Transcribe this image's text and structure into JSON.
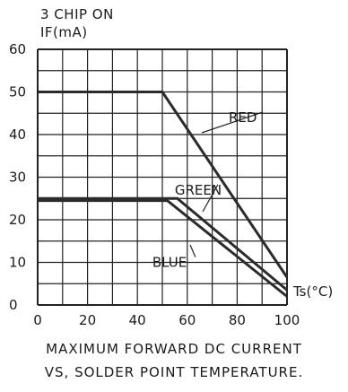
{
  "chart_data": {
    "type": "line",
    "title": "3 CHIP ON",
    "ylabel": "IF(mA)",
    "xlabel": "Ts(°C)",
    "xlim": [
      0,
      100
    ],
    "ylim": [
      0,
      60
    ],
    "x_ticks": [
      "0",
      "20",
      "40",
      "60",
      "80",
      "100"
    ],
    "y_ticks": [
      "0",
      "10",
      "20",
      "30",
      "40",
      "50",
      "60"
    ],
    "grid": true,
    "series": [
      {
        "name": "RED",
        "x": [
          0,
          50,
          100
        ],
        "y": [
          50,
          50,
          6.5
        ],
        "label_at": [
          73,
          44
        ]
      },
      {
        "name": "GREEN",
        "x": [
          0,
          56,
          100
        ],
        "y": [
          25,
          25,
          3.5
        ],
        "label_at": [
          55,
          27
        ]
      },
      {
        "name": "BLUE",
        "x": [
          0,
          52,
          100
        ],
        "y": [
          24.5,
          24.5,
          2
        ],
        "label_at": [
          46,
          10
        ]
      }
    ],
    "caption_line1": "MAXIMUM FORWARD DC CURRENT",
    "caption_line2": "VS, SOLDER POINT TEMPERATURE."
  }
}
